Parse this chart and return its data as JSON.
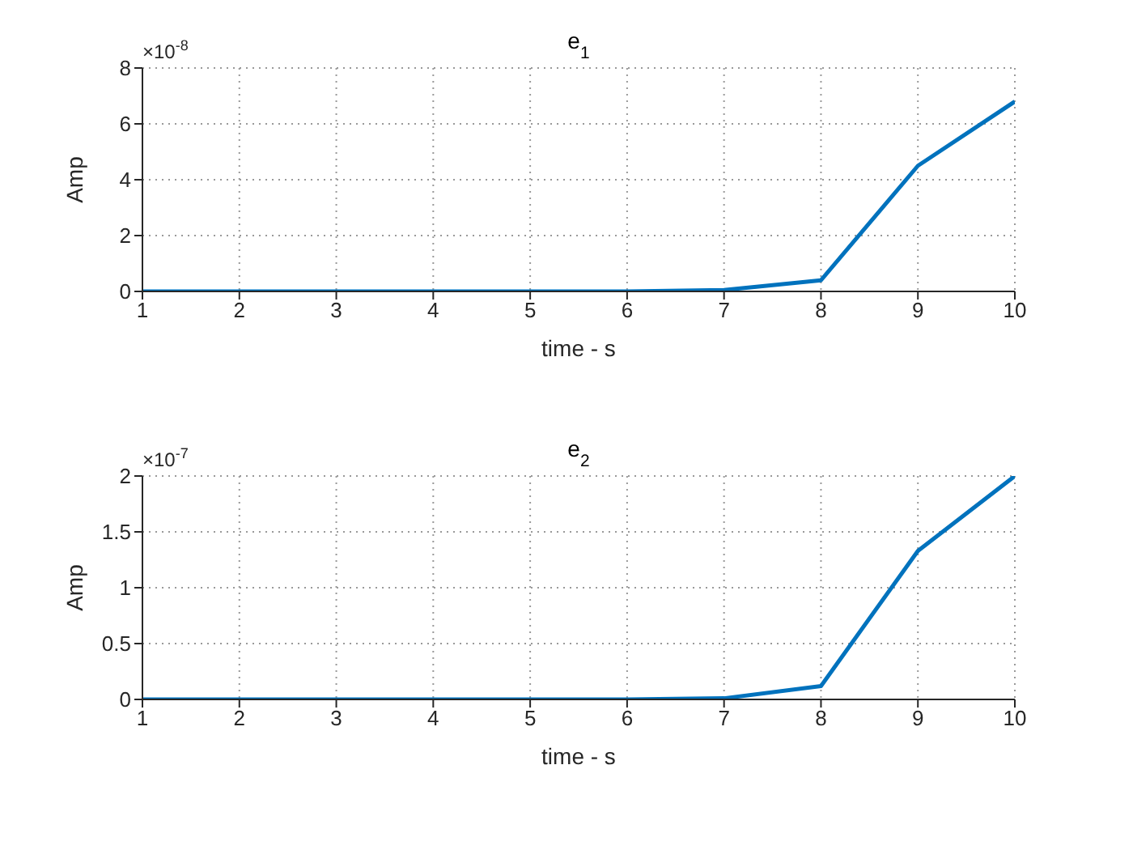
{
  "chart_data": [
    {
      "type": "line",
      "title": "e$_{1}$",
      "xlabel": "time - s",
      "ylabel": "Amp",
      "x": [
        1,
        2,
        3,
        4,
        5,
        6,
        7,
        8,
        9,
        10
      ],
      "series": [
        {
          "color": "#0072bd",
          "values": [
            0,
            0,
            0,
            0,
            0,
            0,
            0.05,
            0.4,
            4.5,
            6.8
          ]
        }
      ],
      "xlim": [
        1,
        10
      ],
      "xticks": [
        1,
        2,
        3,
        4,
        5,
        6,
        7,
        8,
        9,
        10
      ],
      "ylim": [
        0,
        8
      ],
      "yticks": [
        0,
        2,
        4,
        6,
        8
      ],
      "annotations": [
        "×10$^{-8}$"
      ],
      "grid": true,
      "marker": "none",
      "line_style": "solid"
    },
    {
      "type": "line",
      "title": "e$_{2}$",
      "xlabel": "time - s",
      "ylabel": "Amp",
      "x": [
        1,
        2,
        3,
        4,
        5,
        6,
        7,
        8,
        9,
        10
      ],
      "series": [
        {
          "color": "#0072bd",
          "values": [
            0,
            0,
            0,
            0,
            0,
            0,
            0.01,
            0.12,
            1.33,
            2.0
          ]
        }
      ],
      "xlim": [
        1,
        10
      ],
      "xticks": [
        1,
        2,
        3,
        4,
        5,
        6,
        7,
        8,
        9,
        10
      ],
      "ylim": [
        0,
        2
      ],
      "yticks": [
        0,
        0.5,
        1,
        1.5,
        2
      ],
      "annotations": [
        "×10$^{-7}$"
      ],
      "grid": true,
      "marker": "none",
      "line_style": "solid"
    }
  ]
}
